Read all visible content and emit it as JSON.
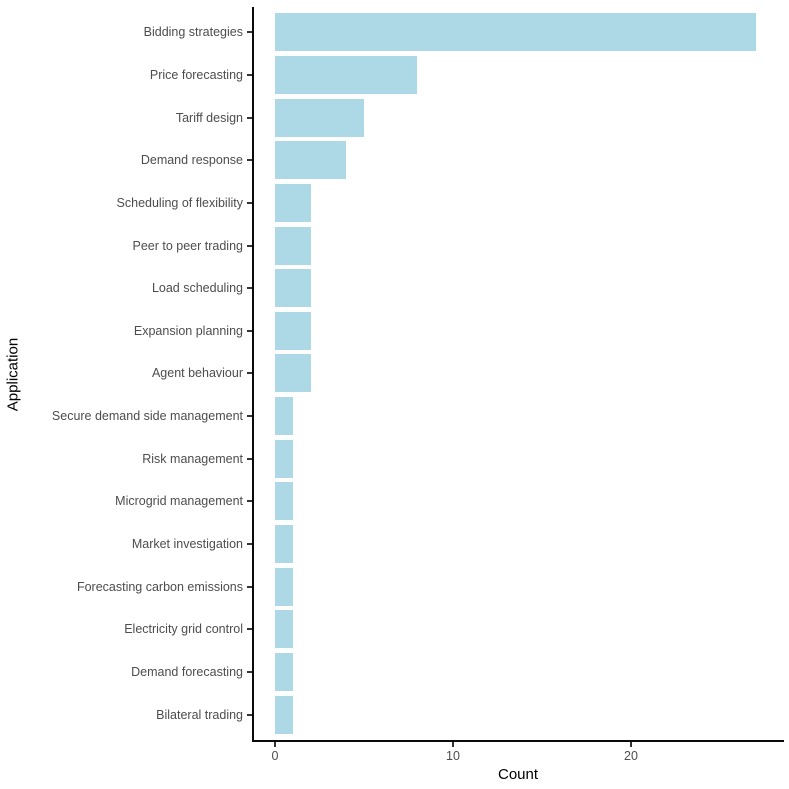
{
  "chart_data": {
    "type": "bar",
    "orientation": "horizontal",
    "title": "",
    "xlabel": "Count",
    "ylabel": "Application",
    "categories": [
      "Bidding strategies",
      "Price forecasting",
      "Tariff design",
      "Demand response",
      "Scheduling of flexibility",
      "Peer to peer trading",
      "Load scheduling",
      "Expansion planning",
      "Agent behaviour",
      "Secure demand side management",
      "Risk management",
      "Microgrid management",
      "Market investigation",
      "Forecasting carbon emissions",
      "Electricity grid control",
      "Demand forecasting",
      "Bilateral trading"
    ],
    "values": [
      27,
      8,
      5,
      4,
      2,
      2,
      2,
      2,
      2,
      1,
      1,
      1,
      1,
      1,
      1,
      1,
      1
    ],
    "x_ticks": [
      0,
      10,
      20
    ],
    "xlim": [
      0,
      28.35
    ],
    "grid": false,
    "legend": false,
    "bar_color": "#ADD8E6",
    "axis_line_color": "#0A0A0A",
    "tick_label_color": "#4D4D4D",
    "axis_title_color": "#000000",
    "background_color": "#FFFFFF"
  }
}
